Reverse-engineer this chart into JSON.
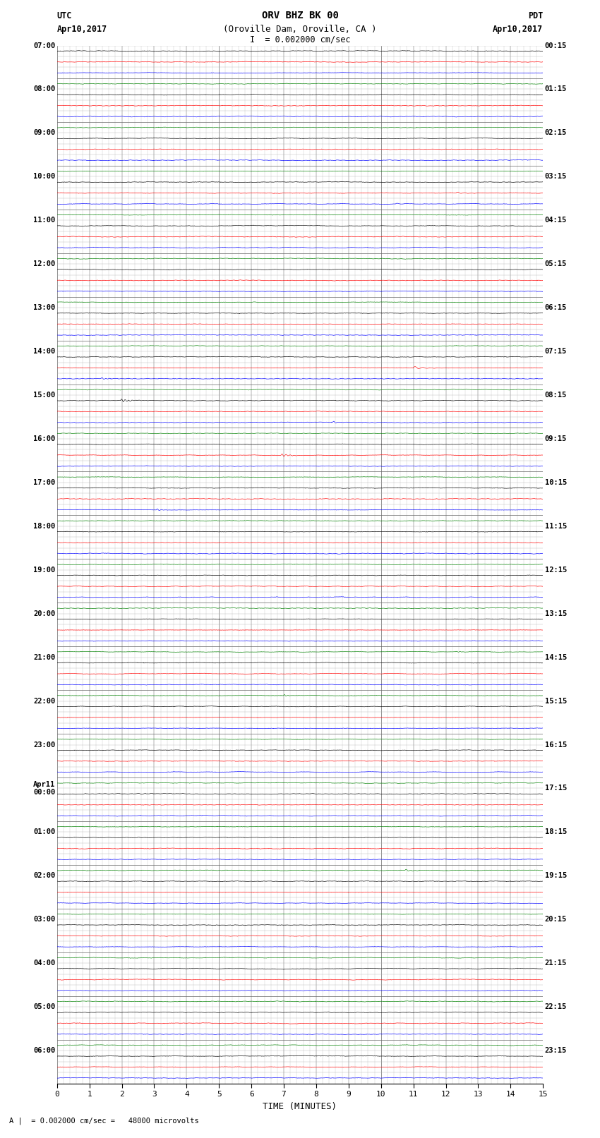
{
  "title_line1": "ORV BHZ BK 00",
  "title_line2": "(Oroville Dam, Oroville, CA )",
  "scale_label": "I  = 0.002000 cm/sec",
  "bottom_label": "A |  = 0.002000 cm/sec =   48000 microvolts",
  "xlabel": "TIME (MINUTES)",
  "xlim": [
    0,
    15
  ],
  "xticks": [
    0,
    1,
    2,
    3,
    4,
    5,
    6,
    7,
    8,
    9,
    10,
    11,
    12,
    13,
    14,
    15
  ],
  "bg_color": "#ffffff",
  "trace_colors": [
    "black",
    "red",
    "blue",
    "green"
  ],
  "utc_labels": [
    "07:00",
    "",
    "",
    "",
    "08:00",
    "",
    "",
    "",
    "09:00",
    "",
    "",
    "",
    "10:00",
    "",
    "",
    "",
    "11:00",
    "",
    "",
    "",
    "12:00",
    "",
    "",
    "",
    "13:00",
    "",
    "",
    "",
    "14:00",
    "",
    "",
    "",
    "15:00",
    "",
    "",
    "",
    "16:00",
    "",
    "",
    "",
    "17:00",
    "",
    "",
    "",
    "18:00",
    "",
    "",
    "",
    "19:00",
    "",
    "",
    "",
    "20:00",
    "",
    "",
    "",
    "21:00",
    "",
    "",
    "",
    "22:00",
    "",
    "",
    "",
    "23:00",
    "",
    "",
    "",
    "Apr11\n00:00",
    "",
    "",
    "",
    "01:00",
    "",
    "",
    "",
    "02:00",
    "",
    "",
    "",
    "03:00",
    "",
    "",
    "",
    "04:00",
    "",
    "",
    "",
    "05:00",
    "",
    "",
    "",
    "06:00",
    "",
    ""
  ],
  "pdt_labels": [
    "00:15",
    "",
    "",
    "",
    "01:15",
    "",
    "",
    "",
    "02:15",
    "",
    "",
    "",
    "03:15",
    "",
    "",
    "",
    "04:15",
    "",
    "",
    "",
    "05:15",
    "",
    "",
    "",
    "06:15",
    "",
    "",
    "",
    "07:15",
    "",
    "",
    "",
    "08:15",
    "",
    "",
    "",
    "09:15",
    "",
    "",
    "",
    "10:15",
    "",
    "",
    "",
    "11:15",
    "",
    "",
    "",
    "12:15",
    "",
    "",
    "",
    "13:15",
    "",
    "",
    "",
    "14:15",
    "",
    "",
    "",
    "15:15",
    "",
    "",
    "",
    "16:15",
    "",
    "",
    "",
    "17:15",
    "",
    "",
    "",
    "18:15",
    "",
    "",
    "",
    "19:15",
    "",
    "",
    "",
    "20:15",
    "",
    "",
    "",
    "21:15",
    "",
    "",
    "",
    "22:15",
    "",
    "",
    "",
    "23:15",
    "",
    ""
  ],
  "n_samples": 1800,
  "noise_scale": 0.025,
  "grid_minor_color": "#aaaaaa",
  "grid_major_color": "#555555",
  "grid_linewidth": 0.4
}
